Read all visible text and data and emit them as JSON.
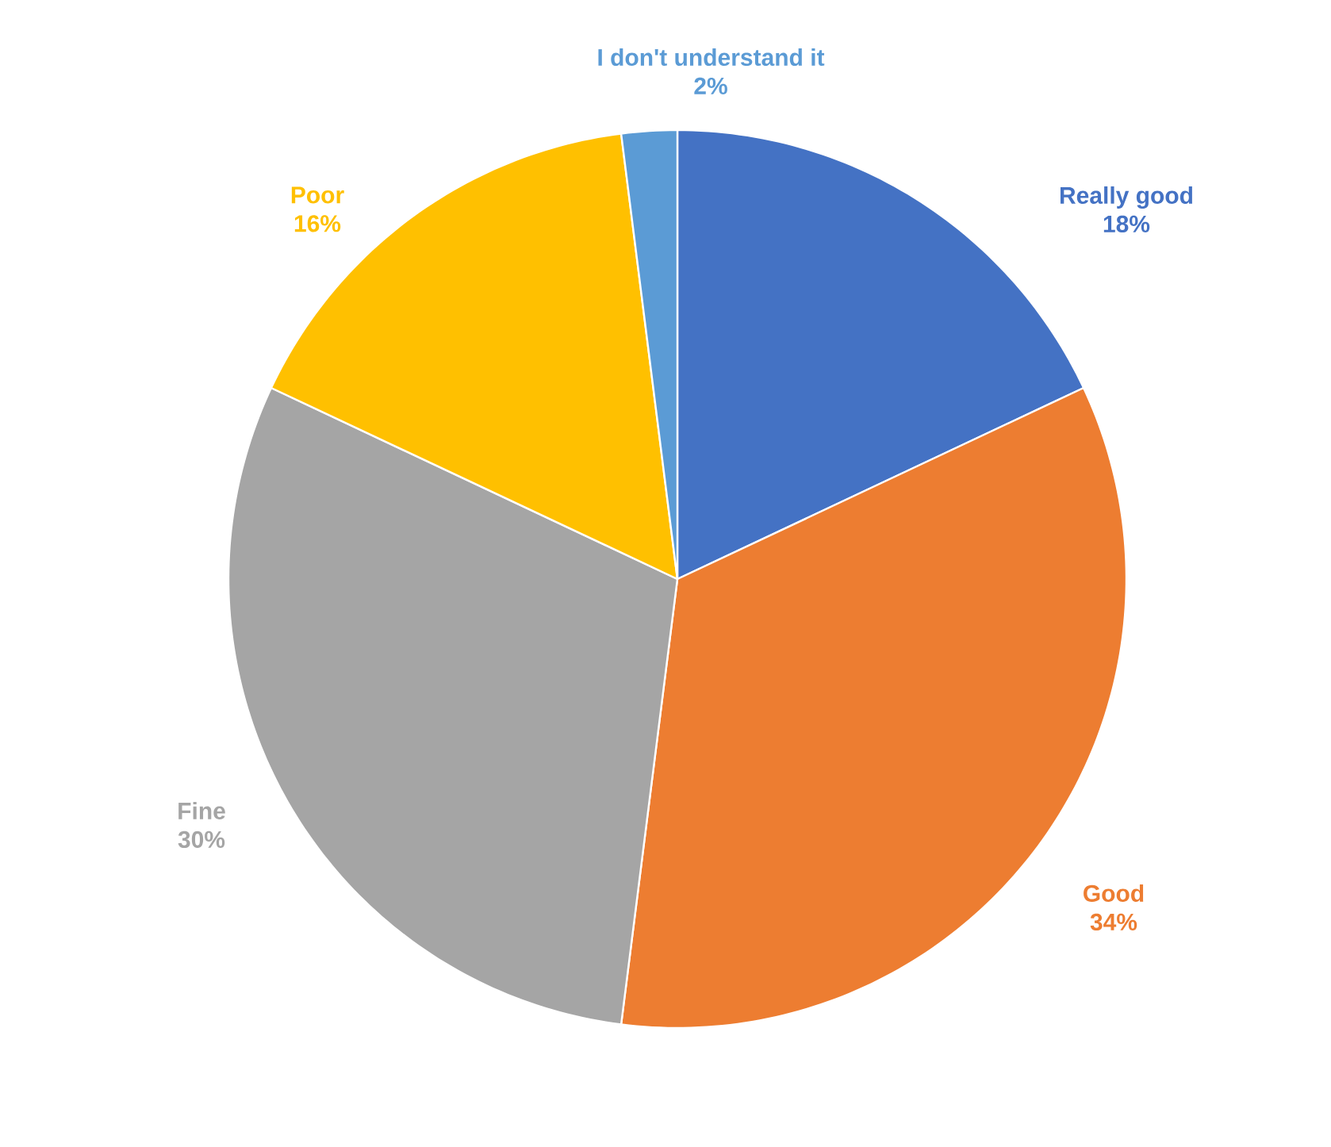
{
  "chart_data": {
    "type": "pie",
    "categories": [
      "Really good",
      "Good",
      "Fine",
      "Poor",
      "I don't understand it"
    ],
    "values": [
      18,
      34,
      30,
      16,
      2
    ],
    "colors": [
      "#4472c4",
      "#ed7d31",
      "#a5a5a5",
      "#ffc000",
      "#5b9bd5"
    ],
    "value_labels": [
      "18%",
      "34%",
      "30%",
      "16%",
      "2%"
    ]
  }
}
